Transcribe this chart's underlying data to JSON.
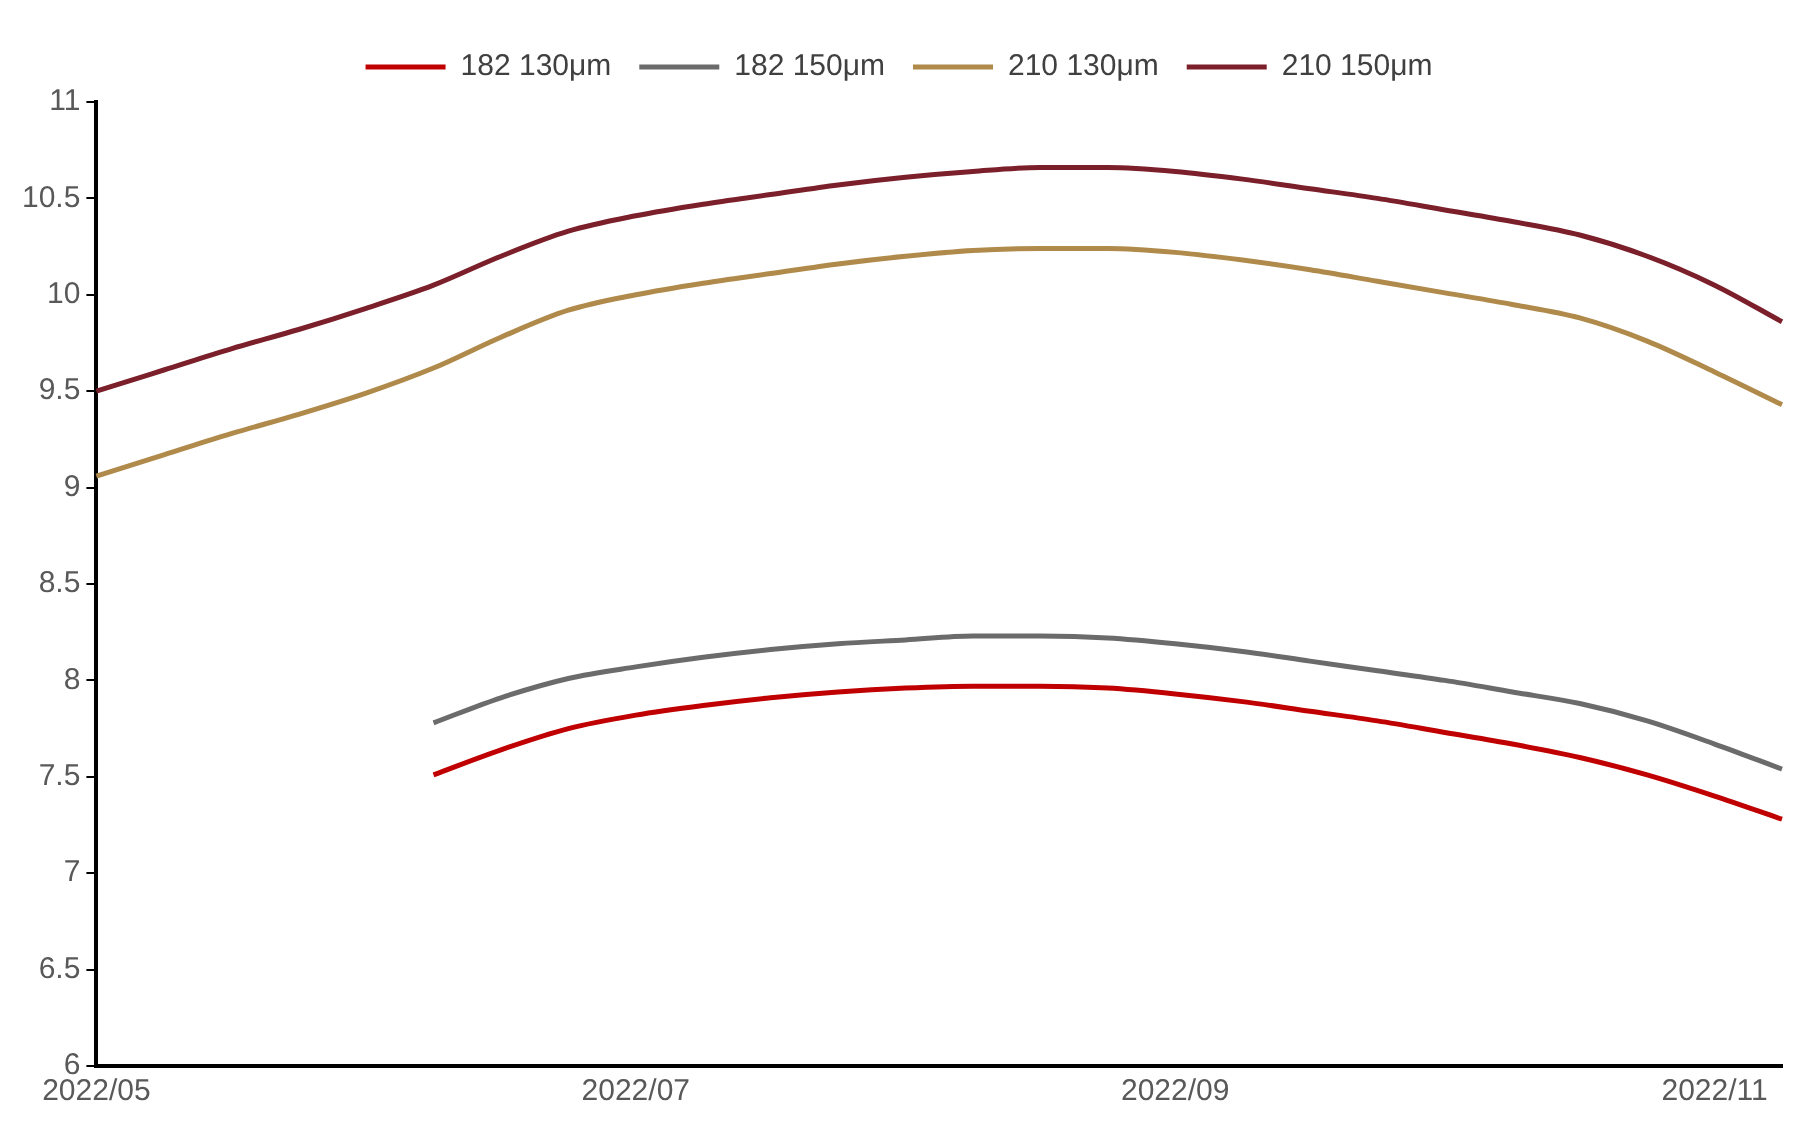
{
  "chart_data": {
    "type": "line",
    "categories": [
      "2022/05",
      null,
      null,
      null,
      null,
      null,
      null,
      null,
      "2022/07",
      null,
      null,
      null,
      null,
      null,
      null,
      null,
      "2022/09",
      null,
      null,
      null,
      null,
      null,
      null,
      null,
      "2022/11",
      null
    ],
    "series": [
      {
        "name": "182 130μm",
        "color": "#c00000",
        "values": [
          null,
          null,
          null,
          null,
          null,
          7.51,
          7.64,
          7.75,
          7.82,
          7.87,
          7.91,
          7.94,
          7.96,
          7.97,
          7.97,
          7.96,
          7.93,
          7.89,
          7.84,
          7.79,
          7.73,
          7.67,
          7.6,
          7.51,
          7.4,
          7.28
        ]
      },
      {
        "name": "182 150μm",
        "color": "#6b6b6b",
        "values": [
          null,
          null,
          null,
          null,
          null,
          7.78,
          7.91,
          8.01,
          8.07,
          8.12,
          8.16,
          8.19,
          8.21,
          8.23,
          8.23,
          8.22,
          8.19,
          8.15,
          8.1,
          8.05,
          8,
          7.94,
          7.88,
          7.79,
          7.67,
          7.54
        ]
      },
      {
        "name": "210 130μm",
        "color": "#b08a4a",
        "values": [
          9.06,
          9.17,
          9.28,
          9.38,
          9.49,
          9.62,
          9.78,
          9.92,
          10,
          10.06,
          10.11,
          10.16,
          10.2,
          10.23,
          10.24,
          10.24,
          10.22,
          10.18,
          10.13,
          10.07,
          10.01,
          9.95,
          9.88,
          9.76,
          9.6,
          9.43
        ]
      },
      {
        "name": "210 150μm",
        "color": "#7b1f2a",
        "values": [
          9.5,
          9.61,
          9.72,
          9.82,
          9.93,
          10.05,
          10.2,
          10.33,
          10.41,
          10.47,
          10.52,
          10.57,
          10.61,
          10.64,
          10.66,
          10.66,
          10.64,
          10.6,
          10.55,
          10.5,
          10.44,
          10.38,
          10.31,
          10.2,
          10.05,
          9.86
        ]
      }
    ],
    "ylim": [
      6,
      11
    ],
    "yticks": [
      6,
      6.5,
      7,
      7.5,
      8,
      8.5,
      9,
      9.5,
      10,
      10.5,
      11
    ],
    "grid": false,
    "legend": "top",
    "marker": "none",
    "line_style": "solid"
  }
}
